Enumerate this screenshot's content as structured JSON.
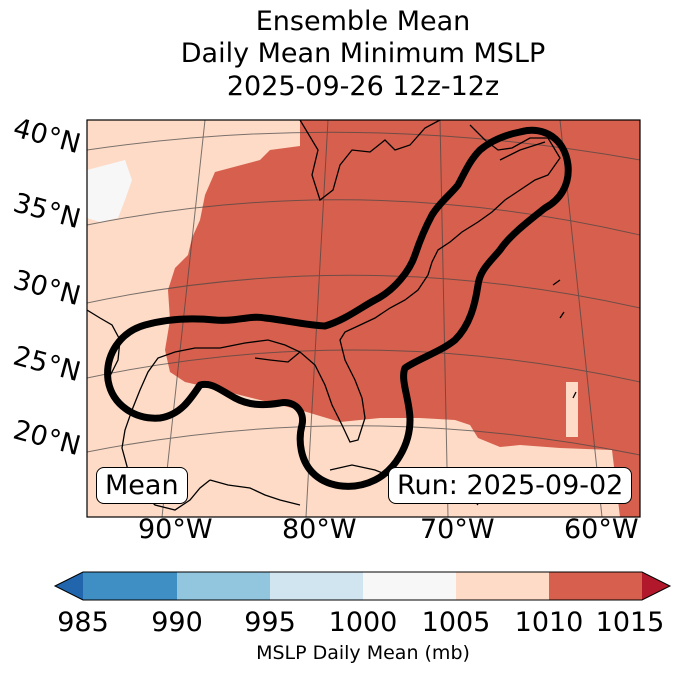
{
  "title": {
    "line1": "Ensemble Mean",
    "line2": "Daily Mean Minimum MSLP",
    "line3": "2025-09-26 12z-12z"
  },
  "latitude_labels": [
    "40°N",
    "35°N",
    "30°N",
    "25°N",
    "20°N"
  ],
  "longitude_labels": [
    "90°W",
    "80°W",
    "70°W",
    "60°W"
  ],
  "boxes": {
    "left": "Mean",
    "right": "Run: 2025-09-02"
  },
  "colorbar": {
    "label": "MSLP Daily Mean (mb)",
    "ticks": [
      "985",
      "990",
      "995",
      "1000",
      "1005",
      "1010",
      "1015"
    ],
    "colors": [
      "#3f8fc5",
      "#92c5de",
      "#d1e5f0",
      "#f7f7f7",
      "#fddbc7",
      "#d6604d"
    ],
    "under_color": "#2166ac",
    "over_color": "#b2182b"
  },
  "map_colors": {
    "range_1005_1010": "#fddbc7",
    "range_1010_1015": "#d6604d",
    "range_1000_1005": "#f7f7f7",
    "contour": "#000000"
  }
}
